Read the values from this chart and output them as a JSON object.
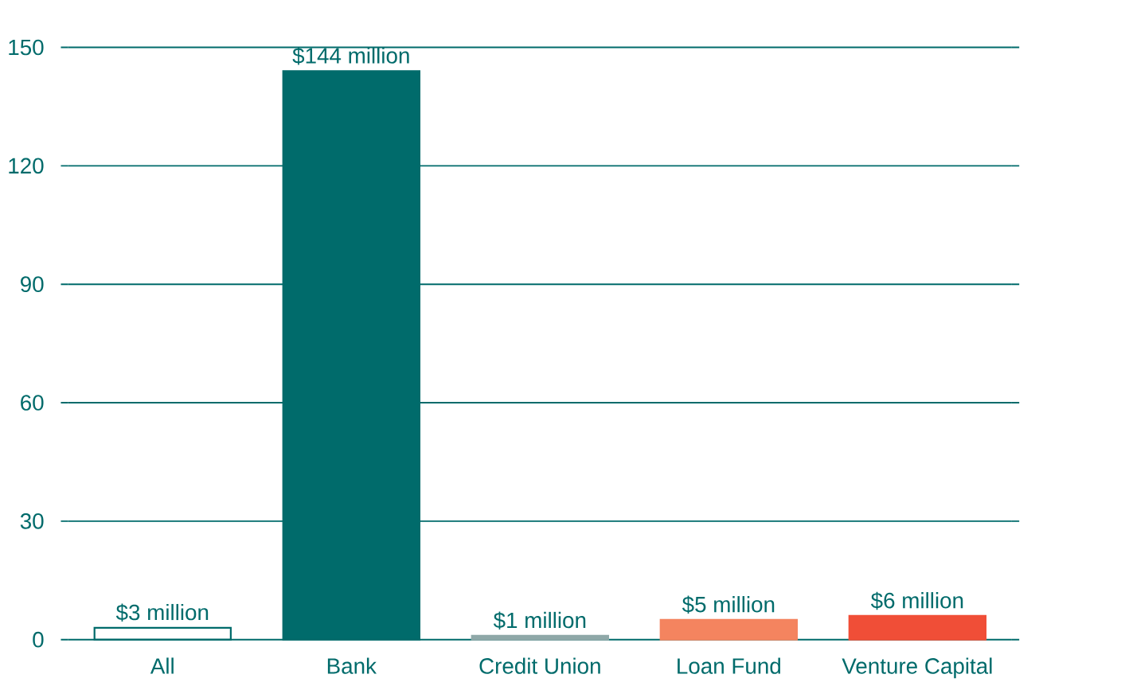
{
  "chart_data": {
    "type": "bar",
    "categories": [
      "All",
      "Bank",
      "Credit Union",
      "Loan Fund",
      "Venture Capital"
    ],
    "values": [
      3,
      144,
      1,
      5,
      6
    ],
    "colors": [
      "#ffffff",
      "#006b6b",
      "#8fa8a8",
      "#f4845f",
      "#f04e37"
    ],
    "value_labels": [
      "$3 million",
      "$144 million",
      "$1 million",
      "$5 million",
      "$6 million"
    ],
    "ylim": [
      0,
      150
    ],
    "yticks": [
      0,
      30,
      60,
      90,
      120,
      150
    ],
    "grid": "y"
  }
}
